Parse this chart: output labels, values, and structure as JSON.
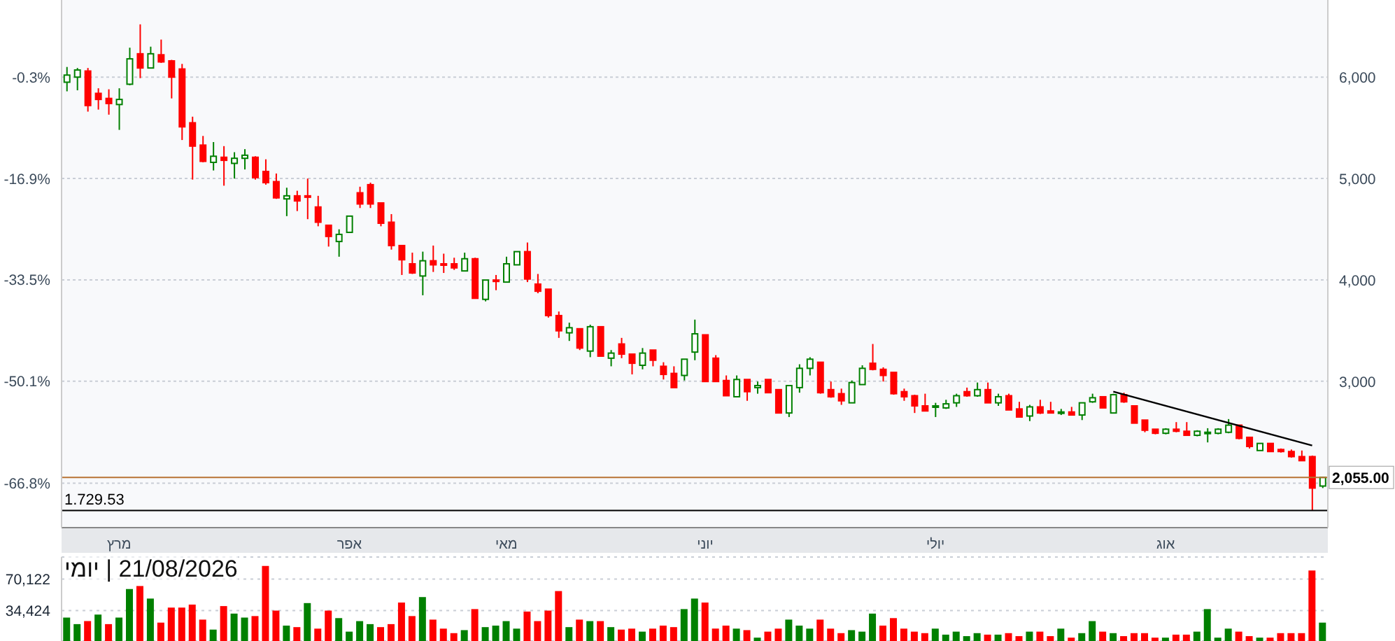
{
  "chart_data": [
    {
      "type": "candlestick",
      "categories": [
        null,
        null,
        null,
        null,
        null,
        "מרץ",
        null,
        null,
        null,
        null,
        null,
        null,
        null,
        null,
        null,
        null,
        null,
        null,
        null,
        null,
        null,
        null,
        null,
        null,
        null,
        null,
        null,
        "אפר",
        null,
        null,
        null,
        null,
        null,
        null,
        null,
        null,
        null,
        null,
        null,
        null,
        null,
        null,
        "מאי",
        null,
        null,
        null,
        null,
        null,
        null,
        null,
        null,
        null,
        null,
        null,
        null,
        null,
        null,
        null,
        null,
        null,
        null,
        "יוני",
        null,
        null,
        null,
        null,
        null,
        null,
        null,
        null,
        null,
        null,
        null,
        null,
        null,
        null,
        null,
        null,
        null,
        null,
        null,
        null,
        null,
        "יולי",
        null,
        null,
        null,
        null,
        null,
        null,
        null,
        null,
        null,
        null,
        null,
        null,
        null,
        null,
        null,
        null,
        null,
        null,
        null,
        null,
        null,
        "אוג",
        null,
        null,
        null,
        null,
        null,
        null,
        null,
        null,
        null,
        null,
        null,
        null,
        null,
        null,
        null
      ],
      "ohlc": [
        [
          5950,
          6100,
          5860,
          6020
        ],
        [
          6000,
          6090,
          5870,
          6070
        ],
        [
          6060,
          6090,
          5660,
          5720
        ],
        [
          5840,
          5890,
          5680,
          5780
        ],
        [
          5790,
          5880,
          5630,
          5740
        ],
        [
          5730,
          5890,
          5480,
          5780
        ],
        [
          5930,
          6290,
          5920,
          6180
        ],
        [
          6230,
          6520,
          5990,
          6090
        ],
        [
          6090,
          6300,
          6090,
          6230
        ],
        [
          6220,
          6370,
          6140,
          6150
        ],
        [
          6160,
          6170,
          5790,
          6000
        ],
        [
          6080,
          6130,
          5380,
          5510
        ],
        [
          5550,
          5610,
          4990,
          5320
        ],
        [
          5330,
          5420,
          5160,
          5170
        ],
        [
          5160,
          5360,
          5080,
          5220
        ],
        [
          5210,
          5320,
          4930,
          5180
        ],
        [
          5150,
          5260,
          5000,
          5200
        ],
        [
          5200,
          5290,
          5090,
          5230
        ],
        [
          5210,
          5220,
          4990,
          5010
        ],
        [
          5070,
          5190,
          4940,
          4960
        ],
        [
          4970,
          5050,
          4800,
          4810
        ],
        [
          4800,
          4910,
          4630,
          4830
        ],
        [
          4830,
          4880,
          4680,
          4780
        ],
        [
          4830,
          5000,
          4600,
          4820
        ],
        [
          4720,
          4830,
          4530,
          4570
        ],
        [
          4540,
          4540,
          4330,
          4430
        ],
        [
          4380,
          4500,
          4230,
          4450
        ],
        [
          4470,
          4630,
          4470,
          4630
        ],
        [
          4860,
          4920,
          4710,
          4750
        ],
        [
          4940,
          4960,
          4710,
          4750
        ],
        [
          4760,
          4760,
          4530,
          4560
        ],
        [
          4570,
          4650,
          4300,
          4340
        ],
        [
          4340,
          4340,
          4050,
          4200
        ],
        [
          4160,
          4270,
          4060,
          4070
        ],
        [
          4040,
          4280,
          3850,
          4190
        ],
        [
          4190,
          4340,
          4080,
          4150
        ],
        [
          4160,
          4260,
          4070,
          4150
        ],
        [
          4160,
          4220,
          4100,
          4120
        ],
        [
          4090,
          4270,
          4090,
          4210
        ],
        [
          4210,
          4220,
          3820,
          3820
        ],
        [
          3810,
          4000,
          3790,
          4000
        ],
        [
          4000,
          4050,
          3900,
          3990
        ],
        [
          3980,
          4230,
          3980,
          4160
        ],
        [
          4150,
          4280,
          4150,
          4280
        ],
        [
          4280,
          4370,
          3980,
          4010
        ],
        [
          3960,
          4060,
          3870,
          3890
        ],
        [
          3910,
          3910,
          3630,
          3650
        ],
        [
          3650,
          3690,
          3430,
          3500
        ],
        [
          3480,
          3580,
          3400,
          3530
        ],
        [
          3520,
          3520,
          3310,
          3330
        ],
        [
          3300,
          3560,
          3240,
          3540
        ],
        [
          3540,
          3540,
          3250,
          3250
        ],
        [
          3230,
          3310,
          3150,
          3280
        ],
        [
          3370,
          3430,
          3230,
          3270
        ],
        [
          3270,
          3270,
          3070,
          3180
        ],
        [
          3160,
          3330,
          3120,
          3280
        ],
        [
          3310,
          3310,
          3150,
          3210
        ],
        [
          3150,
          3190,
          3020,
          3070
        ],
        [
          3080,
          3150,
          2940,
          2940
        ],
        [
          3060,
          3220,
          3010,
          3220
        ],
        [
          3290,
          3610,
          3210,
          3470
        ],
        [
          3460,
          3460,
          3000,
          3000
        ],
        [
          3230,
          3260,
          3000,
          3000
        ],
        [
          3010,
          3060,
          2860,
          2860
        ],
        [
          2850,
          3060,
          2850,
          3020
        ],
        [
          3020,
          3020,
          2810,
          2900
        ],
        [
          2940,
          3000,
          2880,
          2960
        ],
        [
          3020,
          3020,
          2890,
          2890
        ],
        [
          2920,
          2920,
          2690,
          2690
        ],
        [
          2690,
          2960,
          2650,
          2960
        ],
        [
          2940,
          3170,
          2890,
          3130
        ],
        [
          3130,
          3240,
          3060,
          3220
        ],
        [
          3190,
          3190,
          2880,
          2890
        ],
        [
          2920,
          3000,
          2840,
          2850
        ],
        [
          2880,
          2930,
          2770,
          2810
        ],
        [
          2790,
          3010,
          2790,
          2990
        ],
        [
          2970,
          3160,
          2970,
          3130
        ],
        [
          3180,
          3370,
          3110,
          3120
        ],
        [
          3120,
          3140,
          3000,
          3060
        ],
        [
          3090,
          3090,
          2870,
          2880
        ],
        [
          2900,
          2930,
          2810,
          2850
        ],
        [
          2860,
          2870,
          2690,
          2760
        ],
        [
          2760,
          2880,
          2710,
          2710
        ],
        [
          2750,
          2790,
          2650,
          2760
        ],
        [
          2740,
          2820,
          2730,
          2780
        ],
        [
          2790,
          2880,
          2750,
          2860
        ],
        [
          2900,
          2940,
          2850,
          2860
        ],
        [
          2860,
          2990,
          2850,
          2920
        ],
        [
          2920,
          2990,
          2790,
          2790
        ],
        [
          2790,
          2880,
          2760,
          2850
        ],
        [
          2860,
          2880,
          2720,
          2720
        ],
        [
          2730,
          2800,
          2650,
          2650
        ],
        [
          2660,
          2770,
          2610,
          2750
        ],
        [
          2750,
          2820,
          2680,
          2690
        ],
        [
          2710,
          2800,
          2690,
          2690
        ],
        [
          2690,
          2730,
          2670,
          2700
        ],
        [
          2700,
          2750,
          2670,
          2670
        ],
        [
          2670,
          2790,
          2620,
          2790
        ],
        [
          2800,
          2880,
          2790,
          2840
        ],
        [
          2850,
          2850,
          2740,
          2740
        ],
        [
          2690,
          2880,
          2690,
          2870
        ],
        [
          2870,
          2890,
          2790,
          2800
        ],
        [
          2760,
          2760,
          2590,
          2590
        ],
        [
          2620,
          2620,
          2500,
          2520
        ],
        [
          2530,
          2530,
          2480,
          2490
        ],
        [
          2490,
          2540,
          2480,
          2530
        ],
        [
          2530,
          2600,
          2500,
          2510
        ],
        [
          2510,
          2600,
          2470,
          2470
        ],
        [
          2470,
          2520,
          2460,
          2510
        ],
        [
          2490,
          2540,
          2400,
          2500
        ],
        [
          2490,
          2540,
          2480,
          2530
        ],
        [
          2500,
          2630,
          2490,
          2570
        ],
        [
          2570,
          2570,
          2430,
          2440
        ],
        [
          2450,
          2450,
          2340,
          2360
        ],
        [
          2320,
          2390,
          2320,
          2390
        ],
        [
          2390,
          2390,
          2310,
          2310
        ],
        [
          2330,
          2340,
          2300,
          2310
        ],
        [
          2310,
          2330,
          2250,
          2260
        ],
        [
          2260,
          2320,
          2220,
          2220
        ],
        [
          2260,
          2270,
          1730,
          1950
        ],
        [
          1970,
          2060,
          1950,
          2055
        ]
      ],
      "colors": [
        "#008000",
        "#008000",
        "#ff0000",
        "#ff0000",
        "#ff0000",
        "#008000",
        "#008000",
        "#ff0000",
        "#008000",
        "#ff0000",
        "#ff0000",
        "#ff0000",
        "#ff0000",
        "#ff0000",
        "#008000",
        "#ff0000",
        "#008000",
        "#008000",
        "#ff0000",
        "#ff0000",
        "#ff0000",
        "#008000",
        "#ff0000",
        "#ff0000",
        "#ff0000",
        "#ff0000",
        "#008000",
        "#008000",
        "#ff0000",
        "#ff0000",
        "#ff0000",
        "#ff0000",
        "#ff0000",
        "#ff0000",
        "#008000",
        "#ff0000",
        "#ff0000",
        "#ff0000",
        "#008000",
        "#ff0000",
        "#008000",
        "#ff0000",
        "#008000",
        "#008000",
        "#ff0000",
        "#ff0000",
        "#ff0000",
        "#ff0000",
        "#008000",
        "#ff0000",
        "#008000",
        "#ff0000",
        "#008000",
        "#ff0000",
        "#ff0000",
        "#008000",
        "#ff0000",
        "#ff0000",
        "#ff0000",
        "#008000",
        "#008000",
        "#ff0000",
        "#ff0000",
        "#ff0000",
        "#008000",
        "#ff0000",
        "#008000",
        "#ff0000",
        "#ff0000",
        "#008000",
        "#008000",
        "#008000",
        "#ff0000",
        "#ff0000",
        "#ff0000",
        "#008000",
        "#008000",
        "#ff0000",
        "#ff0000",
        "#ff0000",
        "#ff0000",
        "#ff0000",
        "#ff0000",
        "#008000",
        "#008000",
        "#008000",
        "#ff0000",
        "#008000",
        "#ff0000",
        "#008000",
        "#ff0000",
        "#ff0000",
        "#008000",
        "#ff0000",
        "#ff0000",
        "#008000",
        "#ff0000",
        "#008000",
        "#008000",
        "#ff0000",
        "#008000",
        "#ff0000",
        "#ff0000",
        "#ff0000",
        "#ff0000",
        "#008000",
        "#ff0000",
        "#ff0000",
        "#008000",
        "#008000",
        "#008000",
        "#008000",
        "#ff0000",
        "#ff0000",
        "#008000",
        "#ff0000",
        "#ff0000",
        "#ff0000",
        "#ff0000",
        "#ff0000",
        "#008000"
      ],
      "series": [
        {
          "type": "line",
          "color": "#000000",
          "marker": "none",
          "values": [
            null,
            null,
            null,
            null,
            null,
            null,
            null,
            null,
            null,
            null,
            null,
            null,
            null,
            null,
            null,
            null,
            null,
            null,
            null,
            null,
            null,
            null,
            null,
            null,
            null,
            null,
            null,
            null,
            null,
            null,
            null,
            null,
            null,
            null,
            null,
            null,
            null,
            null,
            null,
            null,
            null,
            null,
            null,
            null,
            null,
            null,
            null,
            null,
            null,
            null,
            null,
            null,
            null,
            null,
            null,
            null,
            null,
            null,
            null,
            null,
            null,
            null,
            null,
            null,
            null,
            null,
            null,
            null,
            null,
            null,
            null,
            null,
            null,
            null,
            null,
            null,
            null,
            null,
            null,
            null,
            null,
            null,
            null,
            null,
            null,
            null,
            null,
            null,
            null,
            null,
            null,
            null,
            null,
            null,
            null,
            null,
            null,
            null,
            null,
            null,
            2900,
            null,
            null,
            null,
            null,
            null,
            null,
            null,
            null,
            null,
            null,
            null,
            null,
            null,
            null,
            null,
            null,
            null,
            null,
            2370,
            null
          ]
        }
      ],
      "ylim": [
        1560,
        6760
      ],
      "yticks": [
        {
          "value": 3000,
          "label": "3,000"
        },
        {
          "value": 4000,
          "label": "4,000"
        },
        {
          "value": 5000,
          "label": "5,000"
        },
        {
          "value": 6000,
          "label": "6,000"
        }
      ],
      "y2lim": [
        -74.08,
        12.33
      ],
      "y2ticks": [
        {
          "value": -66.8,
          "label": "-66.8%"
        },
        {
          "value": -50.1,
          "label": "-50.1%"
        },
        {
          "value": -33.5,
          "label": "-33.5%"
        },
        {
          "value": -16.9,
          "label": "-16.9%"
        },
        {
          "value": -0.3,
          "label": "-0.3%"
        }
      ],
      "grid": "y",
      "ref_lines": [
        {
          "axis": "y",
          "value": 2055,
          "label": "2,055.00",
          "color": "#b87333"
        },
        {
          "axis": "y",
          "value": 1729.53,
          "label": "1.729.53",
          "color": "#000000"
        }
      ]
    },
    {
      "type": "bar",
      "categories": [
        null,
        null,
        null,
        null,
        null,
        null,
        null,
        null,
        null,
        null,
        null,
        null,
        null,
        null,
        null,
        null,
        null,
        null,
        null,
        null,
        null,
        null,
        null,
        null,
        null,
        null,
        null,
        null,
        null,
        null,
        null,
        null,
        null,
        null,
        null,
        null,
        null,
        null,
        null,
        null,
        null,
        null,
        null,
        null,
        null,
        null,
        null,
        null,
        null,
        null,
        null,
        null,
        null,
        null,
        null,
        null,
        null,
        null,
        null,
        null,
        null,
        null,
        null,
        null,
        null,
        null,
        null,
        null,
        null,
        null,
        null,
        null,
        null,
        null,
        null,
        null,
        null,
        null,
        null,
        null,
        null,
        null,
        null,
        null,
        null,
        null,
        null,
        null,
        null,
        null,
        null,
        null,
        null,
        null,
        null,
        null,
        null,
        null,
        null,
        null,
        null,
        null,
        null,
        null,
        null,
        null,
        null,
        null,
        null,
        null,
        null,
        null,
        null,
        null,
        null,
        null,
        null,
        null,
        null,
        null,
        null
      ],
      "values": [
        26500,
        19100,
        22500,
        29900,
        19100,
        26500,
        58800,
        62200,
        48000,
        20800,
        37800,
        37800,
        41200,
        24200,
        12900,
        39500,
        31000,
        26500,
        28200,
        84900,
        34400,
        17400,
        15700,
        42900,
        14000,
        34400,
        25900,
        10600,
        22500,
        19100,
        15700,
        19100,
        43500,
        28200,
        49700,
        24200,
        14000,
        8900,
        12300,
        36100,
        15700,
        17400,
        22500,
        14000,
        33300,
        22500,
        34400,
        56500,
        15700,
        24200,
        22500,
        22500,
        15700,
        12900,
        14000,
        10600,
        14000,
        17400,
        15700,
        36100,
        48000,
        43500,
        14000,
        17400,
        14000,
        12300,
        3800,
        10600,
        14000,
        24200,
        17400,
        14000,
        24200,
        14000,
        8900,
        12300,
        10600,
        31000,
        17400,
        25900,
        14000,
        10600,
        8900,
        14000,
        7200,
        10600,
        5500,
        8900,
        7200,
        7200,
        8900,
        5500,
        10600,
        10600,
        5500,
        14000,
        3800,
        8900,
        22500,
        10600,
        8900,
        5500,
        8900,
        8900,
        3800,
        3800,
        7200,
        7200,
        10600,
        36100,
        3800,
        14000,
        10600,
        5500,
        3800,
        3800,
        8900,
        8900,
        8900,
        79800,
        20800
      ],
      "colors": [
        "#008000",
        "#008000",
        "#ff0000",
        "#008000",
        "#ff0000",
        "#008000",
        "#008000",
        "#ff0000",
        "#008000",
        "#ff0000",
        "#ff0000",
        "#ff0000",
        "#ff0000",
        "#ff0000",
        "#008000",
        "#ff0000",
        "#008000",
        "#008000",
        "#ff0000",
        "#ff0000",
        "#ff0000",
        "#008000",
        "#ff0000",
        "#008000",
        "#ff0000",
        "#ff0000",
        "#008000",
        "#008000",
        "#008000",
        "#008000",
        "#ff0000",
        "#ff0000",
        "#ff0000",
        "#ff0000",
        "#008000",
        "#ff0000",
        "#ff0000",
        "#ff0000",
        "#008000",
        "#ff0000",
        "#008000",
        "#008000",
        "#008000",
        "#008000",
        "#ff0000",
        "#ff0000",
        "#ff0000",
        "#ff0000",
        "#008000",
        "#ff0000",
        "#008000",
        "#ff0000",
        "#008000",
        "#ff0000",
        "#ff0000",
        "#008000",
        "#ff0000",
        "#ff0000",
        "#ff0000",
        "#008000",
        "#008000",
        "#ff0000",
        "#ff0000",
        "#ff0000",
        "#008000",
        "#ff0000",
        "#008000",
        "#ff0000",
        "#ff0000",
        "#008000",
        "#008000",
        "#008000",
        "#ff0000",
        "#ff0000",
        "#ff0000",
        "#008000",
        "#008000",
        "#008000",
        "#ff0000",
        "#ff0000",
        "#ff0000",
        "#ff0000",
        "#ff0000",
        "#008000",
        "#008000",
        "#008000",
        "#008000",
        "#008000",
        "#ff0000",
        "#008000",
        "#ff0000",
        "#ff0000",
        "#008000",
        "#ff0000",
        "#ff0000",
        "#008000",
        "#ff0000",
        "#008000",
        "#008000",
        "#ff0000",
        "#008000",
        "#ff0000",
        "#ff0000",
        "#ff0000",
        "#ff0000",
        "#008000",
        "#ff0000",
        "#ff0000",
        "#008000",
        "#008000",
        "#008000",
        "#008000",
        "#ff0000",
        "#ff0000",
        "#008000",
        "#ff0000",
        "#ff0000",
        "#ff0000",
        "#ff0000",
        "#ff0000",
        "#008000"
      ],
      "ylim": [
        0,
        95000
      ],
      "yticks": [
        {
          "value": 34424,
          "label": "34,424"
        },
        {
          "value": 70122,
          "label": "70,122"
        }
      ],
      "grid": "y",
      "tick_labels": "y",
      "annotations": [
        "21/08/2026 | יומי"
      ]
    }
  ]
}
